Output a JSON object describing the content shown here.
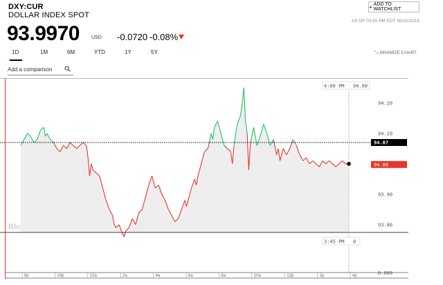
{
  "header": {
    "ticker": "DXY:CUR",
    "name": "DOLLAR INDEX SPOT",
    "price": "93.9970",
    "currency": "USD",
    "change": "-0.0720",
    "change_pct": "-0.08%",
    "watchlist_label": "ADD TO WATCHLIST",
    "as_of": "AS OF 03:55 PM EDT 05/31/2018"
  },
  "tabs": [
    "1D",
    "1M",
    "6M",
    "YTD",
    "1Y",
    "5Y"
  ],
  "active_tab": "1D",
  "minimize_label": "MINIMIZE CHART",
  "compare_placeholder": "Add a comparison",
  "watermark": "BloombergMarkets",
  "colors": {
    "up": "#23c26b",
    "down": "#e8352b",
    "ref_box": "#000000",
    "fill": "#eeeeee"
  },
  "chart_data": {
    "type": "line",
    "reference_value": 94.07,
    "current_value": 94.0,
    "y_tick_labels": [
      "94.20",
      "94.10",
      "93.90",
      "93.80"
    ],
    "x_tick_labels": [
      "8p",
      "10p",
      "12a",
      "2a",
      "4a",
      "6a",
      "8a",
      "10a",
      "12p",
      "2p",
      "4p"
    ],
    "price_badge": "94.00",
    "reference_badge": "94.07",
    "crosshair_time": "4:00 PM",
    "crosshair_value": "94.00",
    "volume_time": "3:45 PM",
    "volume_value": "0",
    "volume_axis_label": "0.000",
    "points": [
      [
        0.0,
        94.06
      ],
      [
        0.01,
        94.08
      ],
      [
        0.02,
        94.1
      ],
      [
        0.03,
        94.09
      ],
      [
        0.04,
        94.07
      ],
      [
        0.05,
        94.08
      ],
      [
        0.06,
        94.11
      ],
      [
        0.07,
        94.12
      ],
      [
        0.075,
        94.09
      ],
      [
        0.08,
        94.1
      ],
      [
        0.09,
        94.08
      ],
      [
        0.1,
        94.07
      ],
      [
        0.11,
        94.05
      ],
      [
        0.12,
        94.04
      ],
      [
        0.13,
        94.06
      ],
      [
        0.14,
        94.05
      ],
      [
        0.15,
        94.07
      ],
      [
        0.16,
        94.06
      ],
      [
        0.17,
        94.05
      ],
      [
        0.18,
        94.06
      ],
      [
        0.19,
        94.07
      ],
      [
        0.2,
        94.06
      ],
      [
        0.205,
        94.02
      ],
      [
        0.21,
        93.96
      ],
      [
        0.215,
        94.0
      ],
      [
        0.22,
        93.98
      ],
      [
        0.23,
        93.97
      ],
      [
        0.24,
        93.96
      ],
      [
        0.25,
        93.92
      ],
      [
        0.26,
        93.88
      ],
      [
        0.27,
        93.85
      ],
      [
        0.28,
        93.83
      ],
      [
        0.285,
        93.8
      ],
      [
        0.29,
        93.79
      ],
      [
        0.3,
        93.8
      ],
      [
        0.31,
        93.77
      ],
      [
        0.315,
        93.76
      ],
      [
        0.32,
        93.78
      ],
      [
        0.33,
        93.79
      ],
      [
        0.34,
        93.82
      ],
      [
        0.35,
        93.8
      ],
      [
        0.36,
        93.84
      ],
      [
        0.37,
        93.85
      ],
      [
        0.38,
        93.89
      ],
      [
        0.39,
        93.93
      ],
      [
        0.4,
        93.96
      ],
      [
        0.41,
        93.92
      ],
      [
        0.42,
        93.93
      ],
      [
        0.43,
        93.9
      ],
      [
        0.44,
        93.88
      ],
      [
        0.45,
        93.85
      ],
      [
        0.46,
        93.83
      ],
      [
        0.47,
        93.81
      ],
      [
        0.48,
        93.82
      ],
      [
        0.49,
        93.85
      ],
      [
        0.5,
        93.88
      ],
      [
        0.505,
        93.86
      ],
      [
        0.51,
        93.88
      ],
      [
        0.52,
        93.92
      ],
      [
        0.53,
        93.95
      ],
      [
        0.535,
        93.93
      ],
      [
        0.54,
        93.96
      ],
      [
        0.55,
        94.0
      ],
      [
        0.56,
        94.04
      ],
      [
        0.57,
        94.05
      ],
      [
        0.575,
        94.07
      ],
      [
        0.58,
        94.1
      ],
      [
        0.585,
        94.08
      ],
      [
        0.59,
        94.12
      ],
      [
        0.6,
        94.14
      ],
      [
        0.61,
        94.1
      ],
      [
        0.615,
        94.08
      ],
      [
        0.62,
        94.06
      ],
      [
        0.63,
        94.05
      ],
      [
        0.64,
        94.04
      ],
      [
        0.645,
        94.0
      ],
      [
        0.65,
        94.06
      ],
      [
        0.655,
        94.1
      ],
      [
        0.66,
        94.13
      ],
      [
        0.67,
        94.16
      ],
      [
        0.675,
        94.2
      ],
      [
        0.68,
        94.25
      ],
      [
        0.685,
        94.14
      ],
      [
        0.69,
        94.1
      ],
      [
        0.695,
        93.98
      ],
      [
        0.7,
        94.07
      ],
      [
        0.71,
        94.12
      ],
      [
        0.72,
        94.06
      ],
      [
        0.73,
        94.09
      ],
      [
        0.74,
        94.13
      ],
      [
        0.75,
        94.1
      ],
      [
        0.76,
        94.06
      ],
      [
        0.77,
        94.08
      ],
      [
        0.78,
        94.03
      ],
      [
        0.785,
        94.05
      ],
      [
        0.79,
        94.01
      ],
      [
        0.8,
        94.05
      ],
      [
        0.81,
        94.03
      ],
      [
        0.82,
        94.05
      ],
      [
        0.83,
        94.08
      ],
      [
        0.84,
        94.06
      ],
      [
        0.85,
        94.03
      ],
      [
        0.86,
        94.01
      ],
      [
        0.87,
        94.02
      ],
      [
        0.88,
        94.0
      ],
      [
        0.89,
        94.01
      ],
      [
        0.9,
        94.0
      ],
      [
        0.91,
        93.99
      ],
      [
        0.92,
        94.01
      ],
      [
        0.93,
        94.0
      ],
      [
        0.94,
        94.01
      ],
      [
        0.95,
        94.0
      ],
      [
        0.96,
        93.99
      ],
      [
        0.97,
        94.0
      ],
      [
        0.98,
        94.01
      ],
      [
        0.99,
        94.0
      ],
      [
        1.0,
        94.0
      ]
    ]
  }
}
